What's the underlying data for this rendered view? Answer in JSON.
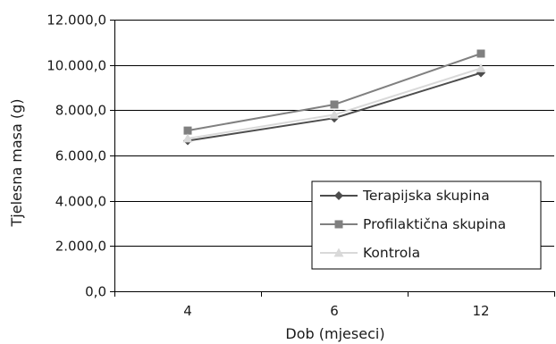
{
  "chart_data": {
    "type": "line",
    "title": "",
    "xlabel": "Dob (mjeseci)",
    "ylabel": "Tjelesna masa (g)",
    "categories": [
      "4",
      "6",
      "12"
    ],
    "ylim": [
      0,
      12000
    ],
    "yticks": [
      0,
      2000,
      4000,
      6000,
      8000,
      10000,
      12000
    ],
    "ytick_labels": [
      "0,0",
      "2.000,0",
      "4.000,0",
      "6.000,0",
      "8.000,0",
      "10.000,0",
      "12.000,0"
    ],
    "grid": true,
    "legend_position": "bottom-right",
    "series": [
      {
        "name": "Terapijska skupina",
        "values": [
          6650,
          7650,
          9650
        ],
        "color": "#4d4d4d",
        "marker": "diamond"
      },
      {
        "name": "Profilaktična skupina",
        "values": [
          7100,
          8250,
          10500
        ],
        "color": "#808080",
        "marker": "square"
      },
      {
        "name": "Kontrola",
        "values": [
          6750,
          7800,
          9850
        ],
        "color": "#d9d9d9",
        "marker": "triangle"
      }
    ]
  }
}
